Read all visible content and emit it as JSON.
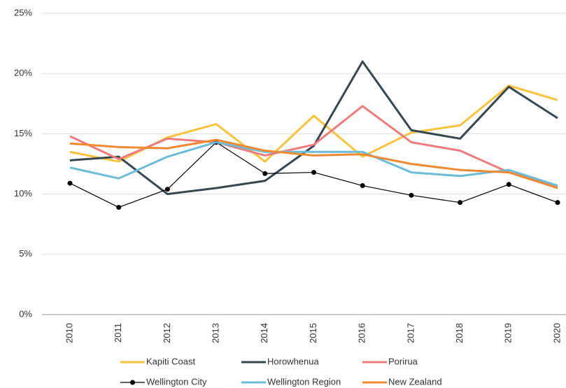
{
  "chart_data": {
    "type": "line",
    "categories": [
      "2010",
      "2011",
      "2012",
      "2013",
      "2014",
      "2015",
      "2016",
      "2017",
      "2018",
      "2019",
      "2020"
    ],
    "series": [
      {
        "name": "Kapiti Coast",
        "color": "#f9c33b",
        "values": [
          13.5,
          12.7,
          14.7,
          15.8,
          12.7,
          16.5,
          13.1,
          15.1,
          15.7,
          19.0,
          17.8
        ]
      },
      {
        "name": "Horowhenua",
        "color": "#37474f",
        "values": [
          12.8,
          13.1,
          10.0,
          10.5,
          11.1,
          14.0,
          21.0,
          15.3,
          14.6,
          18.9,
          16.3
        ]
      },
      {
        "name": "Porirua",
        "color": "#ee7b7e",
        "values": [
          14.8,
          12.9,
          14.6,
          14.3,
          13.2,
          14.1,
          17.3,
          14.3,
          13.6,
          11.8,
          10.7
        ]
      },
      {
        "name": "Wellington City",
        "color": "#000000",
        "marker": true,
        "values": [
          10.9,
          8.9,
          10.4,
          14.3,
          11.7,
          11.8,
          10.7,
          9.9,
          9.3,
          10.8,
          9.3
        ]
      },
      {
        "name": "Wellington Region",
        "color": "#6bbcd6",
        "values": [
          12.2,
          11.3,
          13.1,
          14.3,
          13.5,
          13.5,
          13.5,
          11.8,
          11.5,
          12.0,
          10.7
        ]
      },
      {
        "name": "New Zealand",
        "color": "#ef8a32",
        "values": [
          14.2,
          13.9,
          13.8,
          14.5,
          13.6,
          13.2,
          13.3,
          12.5,
          12.0,
          11.8,
          10.5
        ]
      }
    ],
    "ylim": [
      0,
      25
    ],
    "yticks": [
      {
        "value": 0,
        "label": "0%"
      },
      {
        "value": 5,
        "label": "5%"
      },
      {
        "value": 10,
        "label": "10%"
      },
      {
        "value": 15,
        "label": "15%"
      },
      {
        "value": 20,
        "label": "20%"
      },
      {
        "value": 25,
        "label": "25%"
      }
    ],
    "grid": true,
    "legend": "bottom"
  }
}
